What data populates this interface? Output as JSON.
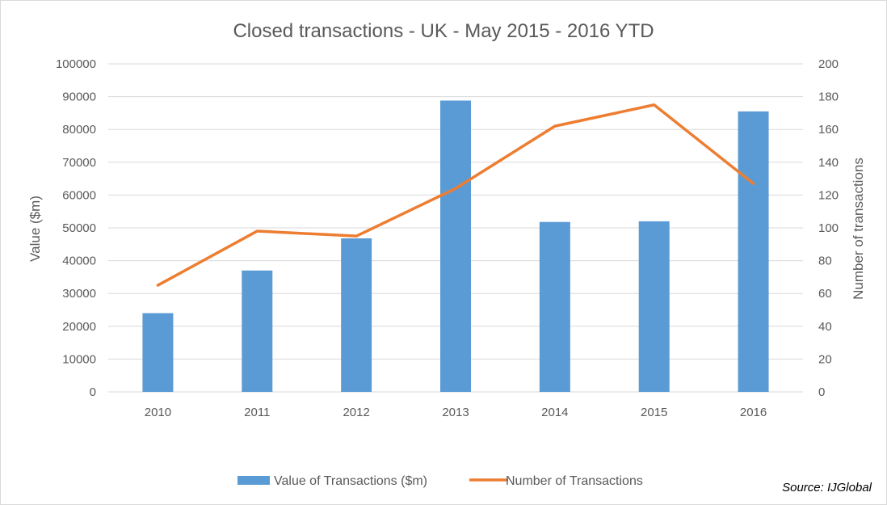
{
  "chart_data": {
    "type": "bar",
    "title": "Closed transactions - UK - May 2015 - 2016 YTD",
    "categories": [
      "2010",
      "2011",
      "2012",
      "2013",
      "2014",
      "2015",
      "2016"
    ],
    "series": [
      {
        "name": "Value of Transactions ($m)",
        "type": "bar",
        "axis": "left",
        "color": "#5b9bd5",
        "values": [
          24000,
          37000,
          46800,
          88800,
          51800,
          52000,
          85500
        ]
      },
      {
        "name": "Number of Transactions",
        "type": "line",
        "axis": "right",
        "color": "#ed7d31",
        "values": [
          65,
          98,
          95,
          124,
          162,
          175,
          127
        ]
      }
    ],
    "ylabel": "Value ($m)",
    "y2label": "Number of transactions",
    "ylim": [
      0,
      100000
    ],
    "y2lim": [
      0,
      200
    ],
    "yticks": [
      "0",
      "10000",
      "20000",
      "30000",
      "40000",
      "50000",
      "60000",
      "70000",
      "80000",
      "90000",
      "100000"
    ],
    "y2ticks": [
      "0",
      "20",
      "40",
      "60",
      "80",
      "100",
      "120",
      "140",
      "160",
      "180",
      "200"
    ],
    "grid": true,
    "legend_position": "bottom"
  },
  "source_note": "Source: IJGlobal"
}
